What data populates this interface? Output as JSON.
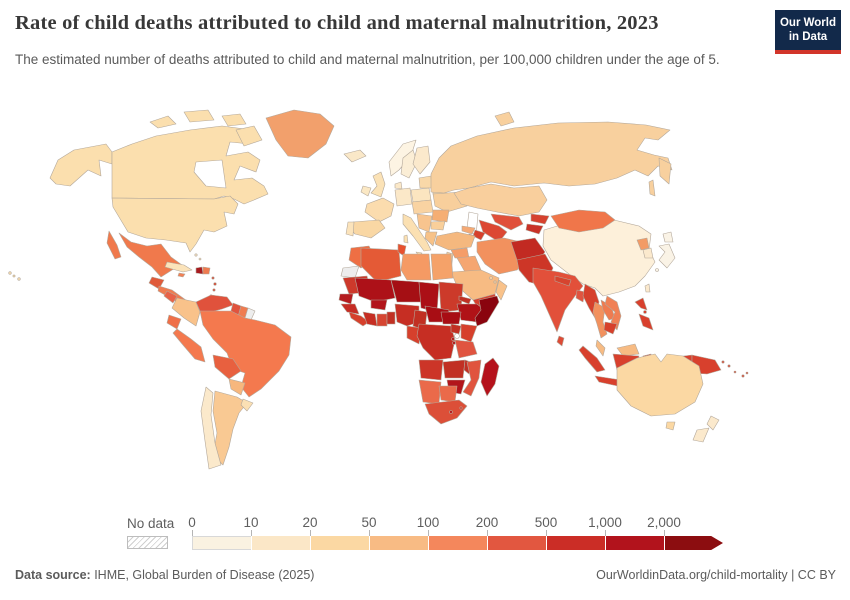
{
  "header": {
    "title": "Rate of child deaths attributed to child and maternal malnutrition, 2023",
    "subtitle": "The estimated number of deaths attributed to child and maternal malnutrition, per 100,000 children under the age of 5.",
    "logo": {
      "line1": "Our World",
      "line2": "in Data",
      "bg_color": "#12294a",
      "accent_color": "#d2352a"
    }
  },
  "chart_data": {
    "type": "choropleth",
    "title": "Rate of child deaths attributed to child and maternal malnutrition, 2023",
    "year": "2023",
    "unit": "deaths per 100,000 children under age 5",
    "projection": "world map",
    "legend": {
      "no_data_label": "No data",
      "tick_labels": [
        "0",
        "10",
        "20",
        "50",
        "100",
        "200",
        "500",
        "1,000",
        "2,000"
      ],
      "bin_ranges": [
        "0-10",
        "10-20",
        "20-50",
        "50-100",
        "100-200",
        "200-500",
        "500-1000",
        "1000-2000",
        "2000+"
      ],
      "bin_colors": [
        "#faf2e1",
        "#fbe7c7",
        "#fbd8a3",
        "#f8bb84",
        "#f4875c",
        "#e25740",
        "#cb2d26",
        "#b2131c",
        "#8c0d10"
      ],
      "open_ended": true,
      "position": "bottom"
    },
    "border_color": "#b3a89b",
    "ocean_color": "#ffffff",
    "region_fills": {
      "alaska": "#fbdfae",
      "canada": "#fbdfae",
      "usa": "#fbdfae",
      "hawaii": "#fbdfae",
      "greenland": "#f2a06c",
      "iceland": "#fae8c8",
      "mexico": "#f0794c",
      "guatemala": "#e05a3a",
      "central_america": "#ef7b50",
      "nicaragua": "#e86248",
      "cuba": "#fbe3ba",
      "haiti": "#a81b20",
      "dominican_republic": "#ef7b50",
      "jamaica": "#f08055",
      "bahamas": "#fbe8c8",
      "caribbean_islands": "#d6402c",
      "colombia": "#f9c28a",
      "venezuela": "#e0523c",
      "guyana": "#e0543e",
      "suriname": "#ef7b50",
      "french_guiana": "#ededed",
      "ecuador": "#ef6f48",
      "peru": "#f4794e",
      "brazil": "#f4794e",
      "bolivia": "#e8603f",
      "paraguay": "#f7b77d",
      "argentina": "#f9c993",
      "chile": "#fbe9cb",
      "uruguay": "#fbe0b4",
      "uk": "#fbe2b6",
      "ireland": "#fbe8c4",
      "norway": "#fdf4e3",
      "sweden": "#fbeed6",
      "finland": "#fbe9cc",
      "denmark": "#fbe8c8",
      "baltics": "#f9d8a8",
      "belarus": "#f9d8a8",
      "poland": "#fbe5c0",
      "germany": "#fbe8c8",
      "france": "#fbdcae",
      "spain": "#f9d7a4",
      "portugal": "#fbe3bb",
      "italy": "#fbe0b2",
      "central_europe": "#f9d3a2",
      "ukraine": "#f8cf9c",
      "romania": "#f5ae74",
      "balkans": "#f8c48e",
      "bulgaria": "#f9cf9a",
      "greece": "#f7c288",
      "russia": "#f8d09e",
      "kazakhstan": "#f9cf9d",
      "uzbekistan": "#e0503a",
      "turkmenistan": "#dc4833",
      "kyrgyzstan": "#d6422f",
      "tajikistan": "#c93227",
      "georgia": "#f5a974",
      "azerbaijan": "#d6402c",
      "armenia": "#b51b1e",
      "turkey": "#f5b87e",
      "syria": "#f59d68",
      "levant": "#f9cf9d",
      "iraq": "#f5a671",
      "iran": "#f2915e",
      "saudi_arabia": "#f7bb83",
      "yemen": "#d6402e",
      "oman": "#f9c28a",
      "gulf_states": "#f9cf9d",
      "afghanistan": "#c22a22",
      "pakistan": "#cd3627",
      "india": "#e2503a",
      "nepal": "#d6442f",
      "bangladesh": "#e05440",
      "sri_lanka": "#dd4b36",
      "myanmar": "#d6402c",
      "thailand": "#f2915e",
      "laos": "#ef7b50",
      "vietnam": "#f08055",
      "cambodia": "#d6402c",
      "malaysia": "#f7bb83",
      "indonesia": "#d8402d",
      "philippines": "#d8402d",
      "papua_new_guinea": "#d8402d",
      "taiwan": "#fbe9cd",
      "china": "#fdf0da",
      "mongolia": "#f0764a",
      "north_korea": "#f29b66",
      "south_korea": "#fbe9cd",
      "japan": "#faf3e6",
      "morocco": "#ee6f44",
      "western_sahara": "#ededed",
      "algeria": "#e45a36",
      "tunisia": "#e8512f",
      "libya": "#f59a64",
      "egypt": "#f5a269",
      "mauritania": "#cd392b",
      "senegal": "#b51b1e",
      "mali": "#ad1118",
      "burkina_faso": "#b2151b",
      "niger": "#a50f14",
      "chad": "#ab0f16",
      "sudan": "#cc3a2a",
      "eritrea": "#c03024",
      "djibouti": "#c03024",
      "ethiopia": "#b01217",
      "somalia": "#8a040e",
      "guinea_region": "#c62c24",
      "sierra_liberia": "#d6402c",
      "ivory_coast": "#c62e23",
      "ghana": "#d64531",
      "togo_benin": "#c13023",
      "nigeria": "#c62e23",
      "cameroon": "#c13023",
      "central_african_republic": "#a80d14",
      "south_sudan": "#a80d14",
      "gabon_congo": "#d6402c",
      "drc": "#c62e23",
      "uganda": "#c13023",
      "kenya": "#d6402c",
      "rwanda_burundi": "#b51b1e",
      "tanzania": "#e05440",
      "angola": "#cc3528",
      "zambia": "#c13023",
      "malawi": "#c03024",
      "mozambique": "#e0543e",
      "zimbabwe": "#b2151b",
      "namibia": "#ea6a4a",
      "botswana": "#ea6a4a",
      "south_africa": "#dc4f38",
      "lesotho": "#b51b1e",
      "eswatini": "#c62e23",
      "madagascar": "#b5121b",
      "australia": "#fbd8a3",
      "new_zealand": "#fbe9cc",
      "fiji": "#d6402c",
      "pacific_islands": "#d6402c"
    }
  },
  "footer": {
    "source_label": "Data source:",
    "source_text": " IHME, Global Burden of Disease (2025)",
    "link": "OurWorldinData.org/child-mortality",
    "separator": " | ",
    "license": "CC BY"
  },
  "colors": {
    "title_text": "#383838",
    "subtitle_text": "#5a5a5a",
    "legend_text": "#5e5e5e",
    "footer_text": "#5b5b5b",
    "map_border": "#b3a89b"
  }
}
